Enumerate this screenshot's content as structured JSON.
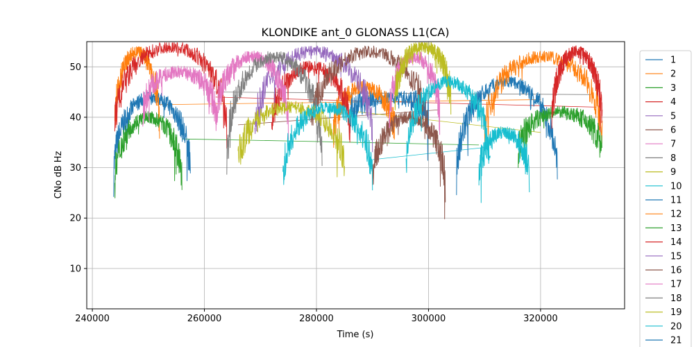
{
  "chart_data": {
    "type": "line",
    "title": "KLONDIKE ant_0 GLONASS L1(CA)",
    "xlabel": "Time (s)",
    "ylabel": "CNo dB Hz",
    "xlim": [
      239000,
      335000
    ],
    "ylim": [
      2,
      55
    ],
    "xticks": [
      240000,
      260000,
      280000,
      300000,
      320000
    ],
    "yticks": [
      10,
      20,
      30,
      40,
      50
    ],
    "grid": true,
    "legend_position": "right",
    "series": [
      {
        "name": "1",
        "color": "#1f77b4",
        "passes": [
          [
            243800,
            257500,
            44,
            28
          ],
          [
            286000,
            300000,
            44,
            40
          ],
          [
            305000,
            323000,
            47,
            28
          ]
        ]
      },
      {
        "name": "2",
        "color": "#ff7f0e",
        "passes": [
          [
            244000,
            252000,
            53,
            37
          ],
          [
            283000,
            294000,
            46,
            36
          ],
          [
            310000,
            331000,
            52,
            36
          ]
        ]
      },
      {
        "name": "3",
        "color": "#2ca02c",
        "passes": [
          [
            244000,
            256000,
            40,
            26
          ],
          [
            316000,
            331000,
            41,
            32
          ]
        ]
      },
      {
        "name": "4",
        "color": "#d62728",
        "passes": [
          [
            244000,
            264000,
            54,
            37
          ],
          [
            272000,
            286000,
            50,
            37
          ],
          [
            322000,
            331000,
            53,
            38
          ]
        ]
      },
      {
        "name": "5",
        "color": "#9467bd",
        "passes": [
          [
            269000,
            290000,
            53,
            36
          ]
        ]
      },
      {
        "name": "6",
        "color": "#8c564b",
        "passes": [
          [
            279000,
            300000,
            53,
            36
          ],
          [
            290000,
            303000,
            40,
            26
          ]
        ]
      },
      {
        "name": "7",
        "color": "#e377c2",
        "passes": [
          [
            249000,
            262000,
            49,
            40
          ],
          [
            262000,
            275000,
            52,
            38
          ],
          [
            293000,
            302000,
            52,
            39
          ]
        ]
      },
      {
        "name": "8",
        "color": "#7f7f7f",
        "passes": [
          [
            264000,
            281000,
            52,
            32
          ]
        ]
      },
      {
        "name": "9",
        "color": "#bcbd22",
        "passes": [
          [
            266000,
            285000,
            42,
            30
          ],
          [
            294000,
            304000,
            54,
            42
          ]
        ]
      },
      {
        "name": "10",
        "color": "#17becf",
        "passes": [
          [
            274000,
            290000,
            42,
            27
          ],
          [
            296000,
            311000,
            47,
            30
          ],
          [
            309000,
            318000,
            37,
            27
          ]
        ]
      }
    ],
    "connector_lines": [
      {
        "color": "#2ca02c",
        "points": [
          [
            256000,
            35.7
          ],
          [
            275000,
            35.3
          ],
          [
            309000,
            34.5
          ]
        ]
      },
      {
        "color": "#17becf",
        "points": [
          [
            290000,
            31.6
          ],
          [
            310000,
            34.0
          ]
        ]
      },
      {
        "color": "#8c564b",
        "points": [
          [
            266000,
            38.5
          ],
          [
            302000,
            41.5
          ]
        ]
      },
      {
        "color": "#d62728",
        "points": [
          [
            262000,
            44
          ],
          [
            330000,
            42
          ]
        ]
      },
      {
        "color": "#ff7f0e",
        "points": [
          [
            252000,
            42.5
          ],
          [
            320000,
            43.5
          ]
        ]
      },
      {
        "color": "#7f7f7f",
        "points": [
          [
            262000,
            45
          ],
          [
            329000,
            44.5
          ]
        ]
      },
      {
        "color": "#bcbd22",
        "points": [
          [
            284000,
            41.5
          ],
          [
            320000,
            37
          ]
        ]
      }
    ],
    "legend_entries": [
      {
        "label": "1",
        "color": "#1f77b4"
      },
      {
        "label": "2",
        "color": "#ff7f0e"
      },
      {
        "label": "3",
        "color": "#2ca02c"
      },
      {
        "label": "4",
        "color": "#d62728"
      },
      {
        "label": "5",
        "color": "#9467bd"
      },
      {
        "label": "6",
        "color": "#8c564b"
      },
      {
        "label": "7",
        "color": "#e377c2"
      },
      {
        "label": "8",
        "color": "#7f7f7f"
      },
      {
        "label": "9",
        "color": "#bcbd22"
      },
      {
        "label": "10",
        "color": "#17becf"
      },
      {
        "label": "11",
        "color": "#1f77b4"
      },
      {
        "label": "12",
        "color": "#ff7f0e"
      },
      {
        "label": "13",
        "color": "#2ca02c"
      },
      {
        "label": "14",
        "color": "#d62728"
      },
      {
        "label": "15",
        "color": "#9467bd"
      },
      {
        "label": "16",
        "color": "#8c564b"
      },
      {
        "label": "17",
        "color": "#e377c2"
      },
      {
        "label": "18",
        "color": "#7f7f7f"
      },
      {
        "label": "19",
        "color": "#bcbd22"
      },
      {
        "label": "20",
        "color": "#17becf"
      },
      {
        "label": "21",
        "color": "#1f77b4"
      }
    ]
  }
}
